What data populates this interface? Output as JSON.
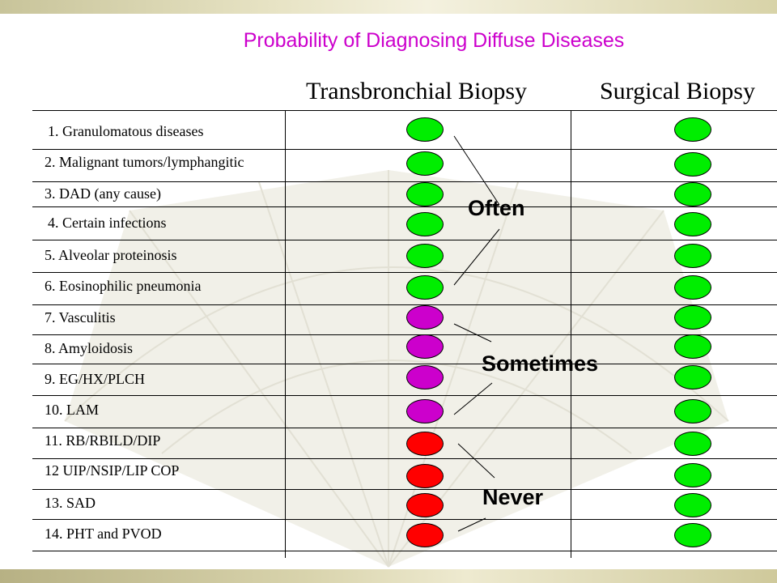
{
  "title": "Probability of Diagnosing Diffuse Diseases",
  "columns": {
    "transbronchial": "Transbronchial Biopsy",
    "surgical": "Surgical Biopsy"
  },
  "rows": [
    {
      "label": "1. Granulomatous diseases",
      "transbronchial": "often",
      "surgical": "often"
    },
    {
      "label": "2. Malignant tumors/lymphangitic",
      "transbronchial": "often",
      "surgical": "often"
    },
    {
      "label": "3. DAD (any cause)",
      "transbronchial": "often",
      "surgical": "often"
    },
    {
      "label": "4. Certain infections",
      "transbronchial": "often",
      "surgical": "often"
    },
    {
      "label": "5. Alveolar proteinosis",
      "transbronchial": "often",
      "surgical": "often"
    },
    {
      "label": "6. Eosinophilic pneumonia",
      "transbronchial": "often",
      "surgical": "often"
    },
    {
      "label": "7. Vasculitis",
      "transbronchial": "sometimes",
      "surgical": "often"
    },
    {
      "label": "8. Amyloidosis",
      "transbronchial": "sometimes",
      "surgical": "often"
    },
    {
      "label": "9. EG/HX/PLCH",
      "transbronchial": "sometimes",
      "surgical": "often"
    },
    {
      "label": "10. LAM",
      "transbronchial": "sometimes",
      "surgical": "often"
    },
    {
      "label": "11. RB/RBILD/DIP",
      "transbronchial": "never",
      "surgical": "often"
    },
    {
      "label": "12 UIP/NSIP/LIP COP",
      "transbronchial": "never",
      "surgical": "often"
    },
    {
      "label": "13. SAD",
      "transbronchial": "never",
      "surgical": "often"
    },
    {
      "label": "14. PHT and PVOD",
      "transbronchial": "never",
      "surgical": "often"
    }
  ],
  "categories": {
    "often": {
      "label": "Often",
      "color": "#00ee00"
    },
    "sometimes": {
      "label": "Sometimes",
      "color": "#cc00cc"
    },
    "never": {
      "label": "Never",
      "color": "#ff0000"
    }
  }
}
